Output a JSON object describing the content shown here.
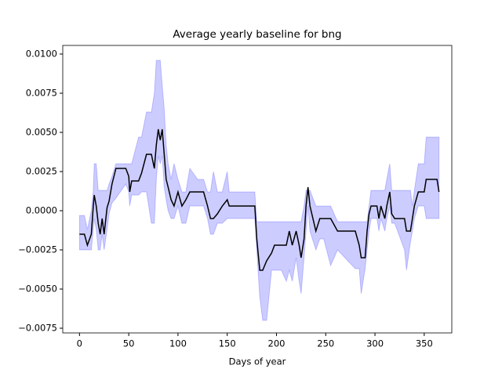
{
  "chart_data": {
    "type": "line-band",
    "title": "Average yearly baseline for bng",
    "x_label": "Days of year",
    "xlim": [
      -17,
      378
    ],
    "xticks": [
      0,
      50,
      100,
      150,
      200,
      250,
      300,
      350
    ],
    "ylim": [
      -0.0078,
      0.01055
    ],
    "yticks": [
      {
        "value": -0.0075,
        "label": "−0.0075"
      },
      {
        "value": -0.005,
        "label": "−0.0050"
      },
      {
        "value": -0.0025,
        "label": "−0.0025"
      },
      {
        "value": 0,
        "label": "0.0000"
      },
      {
        "value": 0.0025,
        "label": "0.0025"
      },
      {
        "value": 0.005,
        "label": "0.0050"
      },
      {
        "value": 0.0075,
        "label": "0.0075"
      },
      {
        "value": 0.01,
        "label": "0.0100"
      }
    ],
    "x": [
      0,
      5,
      8,
      12,
      14,
      15,
      17,
      19,
      21,
      23,
      25,
      28,
      30,
      33,
      37,
      47,
      50,
      51,
      53,
      60,
      63,
      68,
      73,
      76,
      78,
      80,
      82,
      84,
      86,
      88,
      90,
      93,
      96,
      100,
      104,
      108,
      112,
      120,
      126,
      130,
      133,
      136,
      140,
      145,
      150,
      152,
      165,
      178,
      180,
      183,
      186,
      190,
      195,
      198,
      205,
      210,
      213,
      216,
      220,
      223,
      225,
      228,
      230,
      232,
      234,
      240,
      244,
      248,
      255,
      262,
      280,
      284,
      286,
      290,
      292,
      294,
      296,
      302,
      304,
      306,
      310,
      312,
      315,
      317,
      320,
      330,
      332,
      336,
      338,
      340,
      344,
      350,
      352,
      363,
      365
    ],
    "mean": {
      "color": "#000000",
      "values": [
        -0.0015,
        -0.0015,
        -0.0022,
        -0.0015,
        0.0003,
        0.001,
        0.0003,
        -0.0008,
        -0.0015,
        -0.0005,
        -0.0015,
        0.0002,
        0.0006,
        0.0017,
        0.0027,
        0.0027,
        0.0022,
        0.0012,
        0.0019,
        0.0019,
        0.0024,
        0.0036,
        0.0036,
        0.0027,
        0.0042,
        0.0052,
        0.0045,
        0.0052,
        0.0036,
        0.002,
        0.0015,
        0.0007,
        0.0003,
        0.0012,
        0.0003,
        0.0007,
        0.0012,
        0.0012,
        0.0012,
        0.0003,
        -0.0005,
        -0.0005,
        -0.0002,
        0.0003,
        0.0007,
        0.0003,
        0.0003,
        0.0003,
        -0.0018,
        -0.0038,
        -0.0038,
        -0.0032,
        -0.0027,
        -0.0022,
        -0.0022,
        -0.0022,
        -0.0013,
        -0.0022,
        -0.0013,
        -0.0022,
        -0.003,
        -0.0018,
        0.0003,
        0.0015,
        0.0003,
        -0.0013,
        -0.0005,
        -0.0005,
        -0.0005,
        -0.0013,
        -0.0013,
        -0.0022,
        -0.003,
        -0.003,
        -0.0013,
        -0.0002,
        0.0003,
        0.0003,
        -0.0005,
        0.0003,
        -0.0005,
        0.0003,
        0.0012,
        -0.0002,
        -0.0005,
        -0.0005,
        -0.0013,
        -0.0013,
        -0.0005,
        0.0003,
        0.0012,
        0.0012,
        0.002,
        0.002,
        0.0012
      ]
    },
    "band": {
      "color": "#0000ff",
      "opacity": 0.2,
      "lower": [
        -0.0025,
        -0.0025,
        -0.0025,
        -0.0025,
        -0.0012,
        -0.0005,
        -0.0012,
        -0.0025,
        -0.0025,
        -0.0015,
        -0.0025,
        -0.0012,
        -0.0002,
        0.0005,
        0.0008,
        0.0017,
        0.0012,
        0.0003,
        0.001,
        0.001,
        0.0012,
        0.0012,
        -0.0008,
        -0.0008,
        0.002,
        0.0035,
        0.003,
        0.0035,
        0.0015,
        0.0007,
        0.0,
        -0.0005,
        -0.0005,
        0.0003,
        -0.0008,
        -0.0008,
        0.0003,
        0.0003,
        0.0003,
        -0.0005,
        -0.0015,
        -0.0015,
        -0.0008,
        -0.0008,
        -0.0005,
        -0.0005,
        -0.0005,
        -0.0005,
        -0.0025,
        -0.0055,
        -0.007,
        -0.007,
        -0.0038,
        -0.0038,
        -0.0038,
        -0.0045,
        -0.0038,
        -0.0045,
        -0.003,
        -0.0045,
        -0.0053,
        -0.003,
        -0.0013,
        0.0003,
        -0.0013,
        -0.0025,
        -0.0018,
        -0.0018,
        -0.0035,
        -0.0025,
        -0.0037,
        -0.0037,
        -0.0053,
        -0.0037,
        -0.0025,
        -0.0013,
        -0.0005,
        -0.0005,
        -0.0013,
        -0.0005,
        -0.0013,
        -0.0005,
        0.0003,
        -0.0008,
        -0.0008,
        -0.0025,
        -0.0038,
        -0.002,
        -0.0013,
        -0.0005,
        0.0003,
        0.0003,
        -0.0005,
        -0.0005,
        -0.0005
      ],
      "upper": [
        -0.0003,
        -0.0003,
        -0.0012,
        0.0,
        0.0013,
        0.003,
        0.003,
        0.0013,
        0.0013,
        0.0013,
        0.0013,
        0.0013,
        0.0017,
        0.0022,
        0.003,
        0.003,
        0.003,
        0.003,
        0.003,
        0.0047,
        0.0047,
        0.0063,
        0.0063,
        0.0075,
        0.0096,
        0.0096,
        0.0096,
        0.008,
        0.0065,
        0.0042,
        0.003,
        0.002,
        0.003,
        0.002,
        0.0012,
        0.0012,
        0.0027,
        0.002,
        0.002,
        0.0012,
        0.0012,
        0.0025,
        0.0012,
        0.0012,
        0.0025,
        0.0012,
        0.0012,
        0.0012,
        -0.0007,
        -0.0007,
        -0.0007,
        -0.0007,
        -0.0007,
        -0.0007,
        -0.0007,
        -0.0007,
        -0.0007,
        -0.0007,
        -0.0007,
        -0.0007,
        -0.0007,
        0.0003,
        0.0013,
        0.0013,
        0.0013,
        0.0003,
        0.0003,
        0.0003,
        0.0003,
        -0.0007,
        -0.0007,
        -0.0007,
        -0.0007,
        -0.0007,
        -0.0007,
        0.0003,
        0.0013,
        0.0013,
        0.0013,
        0.0013,
        0.0013,
        0.002,
        0.003,
        0.0013,
        0.0013,
        0.0013,
        0.0013,
        0.0013,
        0.0003,
        0.0013,
        0.003,
        0.003,
        0.0047,
        0.0047,
        0.0047
      ]
    }
  }
}
